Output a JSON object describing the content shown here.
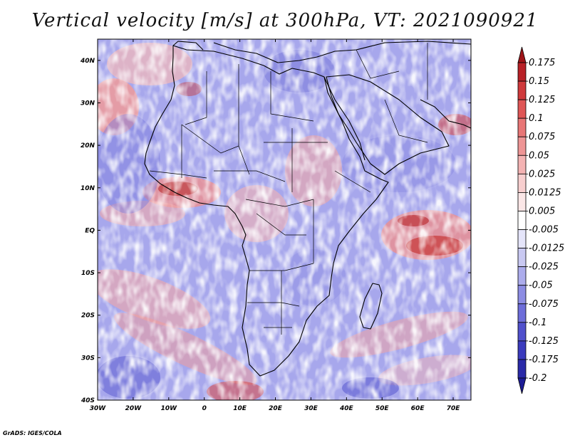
{
  "map": {
    "title": "Vertical velocity [m/s] at 300hPa, VT: 2021090921",
    "variable": "Vertical velocity",
    "units": "m/s",
    "level": "300hPa",
    "valid_time": "2021090921",
    "lon_range": [
      -30,
      75
    ],
    "lat_range": [
      -40,
      45
    ],
    "lat_ticks": [
      {
        "value": 40,
        "label": "40N"
      },
      {
        "value": 30,
        "label": "30N"
      },
      {
        "value": 20,
        "label": "20N"
      },
      {
        "value": 10,
        "label": "10N"
      },
      {
        "value": 0,
        "label": "EQ"
      },
      {
        "value": -10,
        "label": "10S"
      },
      {
        "value": -20,
        "label": "20S"
      },
      {
        "value": -30,
        "label": "30S"
      },
      {
        "value": -40,
        "label": "40S"
      }
    ],
    "lon_ticks": [
      {
        "value": -30,
        "label": "30W"
      },
      {
        "value": -20,
        "label": "20W"
      },
      {
        "value": -10,
        "label": "10W"
      },
      {
        "value": 0,
        "label": "0"
      },
      {
        "value": 10,
        "label": "10E"
      },
      {
        "value": 20,
        "label": "20E"
      },
      {
        "value": 30,
        "label": "30E"
      },
      {
        "value": 40,
        "label": "40E"
      },
      {
        "value": 50,
        "label": "50E"
      },
      {
        "value": 60,
        "label": "60E"
      },
      {
        "value": 70,
        "label": "70E"
      }
    ]
  },
  "colorbar": {
    "levels": [
      "0.175",
      "0.15",
      "0.125",
      "0.1",
      "0.075",
      "0.05",
      "0.025",
      "0.0125",
      "0.005",
      "-0.005",
      "-0.0125",
      "-0.025",
      "-0.05",
      "-0.075",
      "-0.1",
      "-0.125",
      "-0.175",
      "-0.2"
    ],
    "colors": [
      "#9e1418",
      "#b82127",
      "#cf3a3c",
      "#df5656",
      "#e87676",
      "#ee9595",
      "#f4b3b3",
      "#f8cfcf",
      "#fbe7e7",
      "#ffffff",
      "#e5e5fa",
      "#c9c9f2",
      "#acacec",
      "#8c8ce3",
      "#6d6dd9",
      "#5050cc",
      "#3b3bbd",
      "#2a2aa8",
      "#1c1c95"
    ],
    "colors_note": "first=top arrow (above 0.175), last=bottom arrow (below -0.2)"
  },
  "footer": {
    "credit": "GrADS: IGES/COLA"
  }
}
